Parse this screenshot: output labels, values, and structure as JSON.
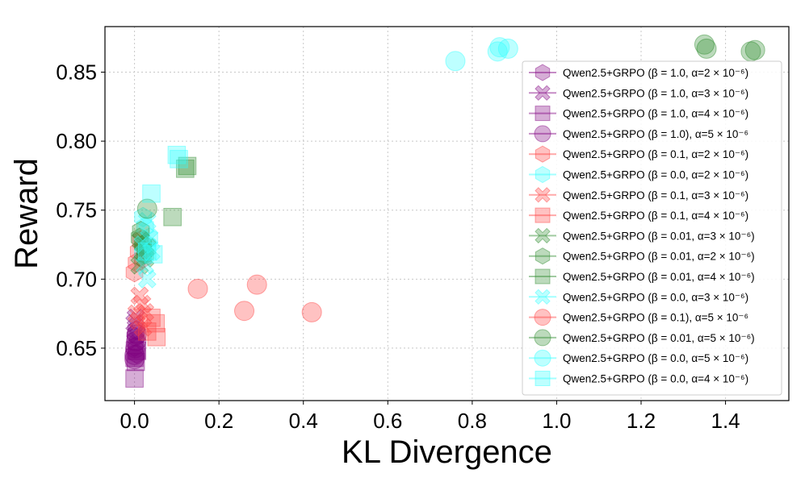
{
  "chart_data": {
    "type": "scatter",
    "xlabel": "KL Divergence",
    "ylabel": "Reward",
    "xlim": [
      -0.07,
      1.55
    ],
    "ylim": [
      0.612,
      0.883
    ],
    "xticks": [
      "0.0",
      "0.2",
      "0.4",
      "0.6",
      "0.8",
      "1.0",
      "1.2",
      "1.4"
    ],
    "xtick_values": [
      0.0,
      0.2,
      0.4,
      0.6,
      0.8,
      1.0,
      1.2,
      1.4
    ],
    "yticks": [
      "0.65",
      "0.70",
      "0.75",
      "0.80",
      "0.85"
    ],
    "ytick_values": [
      0.65,
      0.7,
      0.75,
      0.8,
      0.85
    ],
    "grid": true,
    "legend_position": "right",
    "colors": {
      "purple": "#800080",
      "red": "#ff4040",
      "cyan": "#33ffff",
      "green": "#2e8b2e"
    },
    "series": [
      {
        "name": "Qwen2.5+GRPO (β = 1.0, α=2 × 10⁻⁶)",
        "color": "#800080",
        "marker": "hexagon",
        "points": [
          [
            0.0,
            0.651
          ],
          [
            0.002,
            0.658
          ],
          [
            0.004,
            0.663
          ],
          [
            0.005,
            0.646
          ]
        ]
      },
      {
        "name": "Qwen2.5+GRPO (β = 1.0, α=3 × 10⁻⁶)",
        "color": "#800080",
        "marker": "x",
        "points": [
          [
            0.0,
            0.668
          ],
          [
            0.003,
            0.672
          ],
          [
            0.006,
            0.66
          ],
          [
            0.002,
            0.655
          ]
        ]
      },
      {
        "name": "Qwen2.5+GRPO (β = 1.0, α=4 × 10⁻⁶)",
        "color": "#800080",
        "marker": "square",
        "points": [
          [
            0.0,
            0.628
          ],
          [
            0.003,
            0.64
          ],
          [
            0.006,
            0.648
          ],
          [
            0.0,
            0.643
          ]
        ]
      },
      {
        "name": "Qwen2.5+GRPO (β = 1.0), α=5 × 10⁻⁶",
        "color": "#800080",
        "marker": "circle",
        "points": [
          [
            0.0,
            0.645
          ],
          [
            0.002,
            0.65
          ],
          [
            0.004,
            0.655
          ],
          [
            0.0,
            0.642
          ],
          [
            0.005,
            0.66
          ]
        ]
      },
      {
        "name": "Qwen2.5+GRPO (β = 0.1, α=2 × 10⁻⁶)",
        "color": "#ff4040",
        "marker": "hexagon",
        "points": [
          [
            0.01,
            0.72
          ],
          [
            0.005,
            0.712
          ],
          [
            0.015,
            0.728
          ],
          [
            0.0,
            0.705
          ],
          [
            0.02,
            0.715
          ]
        ]
      },
      {
        "name": "Qwen2.5+GRPO (β = 0.0, α=2 × 10⁻⁶)",
        "color": "#33ffff",
        "marker": "hexagon",
        "points": [
          [
            0.02,
            0.745
          ],
          [
            0.025,
            0.738
          ],
          [
            0.03,
            0.725
          ],
          [
            0.02,
            0.718
          ],
          [
            0.035,
            0.73
          ]
        ]
      },
      {
        "name": "Qwen2.5+GRPO (β = 0.1, α=3 × 10⁻⁶)",
        "color": "#ff4040",
        "marker": "x",
        "points": [
          [
            0.012,
            0.688
          ],
          [
            0.018,
            0.682
          ],
          [
            0.025,
            0.676
          ],
          [
            0.01,
            0.67
          ],
          [
            0.02,
            0.665
          ],
          [
            0.005,
            0.675
          ]
        ]
      },
      {
        "name": "Qwen2.5+GRPO (β = 0.1, α=4 × 10⁻⁶)",
        "color": "#ff4040",
        "marker": "square",
        "points": [
          [
            0.05,
            0.668
          ],
          [
            0.052,
            0.658
          ],
          [
            0.04,
            0.672
          ],
          [
            0.03,
            0.662
          ]
        ]
      },
      {
        "name": "Qwen2.5+GRPO (β = 0.01, α=3 × 10⁻⁶)",
        "color": "#2e8b2e",
        "marker": "x",
        "points": [
          [
            0.015,
            0.728
          ],
          [
            0.02,
            0.72
          ],
          [
            0.025,
            0.715
          ],
          [
            0.012,
            0.71
          ],
          [
            0.03,
            0.723
          ]
        ]
      },
      {
        "name": "Qwen2.5+GRPO (β = 0.01, α=2 × 10⁻⁶)",
        "color": "#2e8b2e",
        "marker": "hexagon",
        "points": [
          [
            0.015,
            0.735
          ],
          [
            0.02,
            0.725
          ],
          [
            0.025,
            0.718
          ],
          [
            0.012,
            0.73
          ]
        ]
      },
      {
        "name": "Qwen2.5+GRPO (β = 0.01, α=4 × 10⁻⁶)",
        "color": "#2e8b2e",
        "marker": "square",
        "points": [
          [
            0.125,
            0.782
          ],
          [
            0.09,
            0.745
          ],
          [
            0.12,
            0.78
          ]
        ]
      },
      {
        "name": "Qwen2.5+GRPO (β = 0.0, α=3 × 10⁻⁶)",
        "color": "#33ffff",
        "marker": "x",
        "points": [
          [
            0.03,
            0.742
          ],
          [
            0.035,
            0.73
          ],
          [
            0.025,
            0.71
          ],
          [
            0.03,
            0.7
          ],
          [
            0.04,
            0.72
          ],
          [
            0.02,
            0.725
          ]
        ]
      },
      {
        "name": "Qwen2.5+GRPO (β = 0.1), α=5 × 10⁻⁶",
        "color": "#ff4040",
        "marker": "circle",
        "points": [
          [
            0.15,
            0.693
          ],
          [
            0.29,
            0.696
          ],
          [
            0.26,
            0.677
          ],
          [
            0.42,
            0.676
          ]
        ]
      },
      {
        "name": "Qwen2.5+GRPO (β = 0.01, α=5 × 10⁻⁶)",
        "color": "#2e8b2e",
        "marker": "circle",
        "points": [
          [
            1.35,
            0.87
          ],
          [
            1.355,
            0.867
          ],
          [
            1.46,
            0.865
          ],
          [
            1.47,
            0.866
          ],
          [
            0.03,
            0.751
          ]
        ]
      },
      {
        "name": "Qwen2.5+GRPO (β = 0.0, α=5 × 10⁻⁶)",
        "color": "#33ffff",
        "marker": "circle",
        "points": [
          [
            0.76,
            0.858
          ],
          [
            0.86,
            0.865
          ],
          [
            0.865,
            0.868
          ],
          [
            0.885,
            0.867
          ]
        ]
      },
      {
        "name": "Qwen2.5+GRPO (β = 0.0, α=4 × 10⁻⁶)",
        "color": "#33ffff",
        "marker": "square",
        "points": [
          [
            0.04,
            0.762
          ],
          [
            0.1,
            0.79
          ],
          [
            0.105,
            0.787
          ],
          [
            0.03,
            0.72
          ],
          [
            0.045,
            0.718
          ]
        ]
      }
    ]
  }
}
